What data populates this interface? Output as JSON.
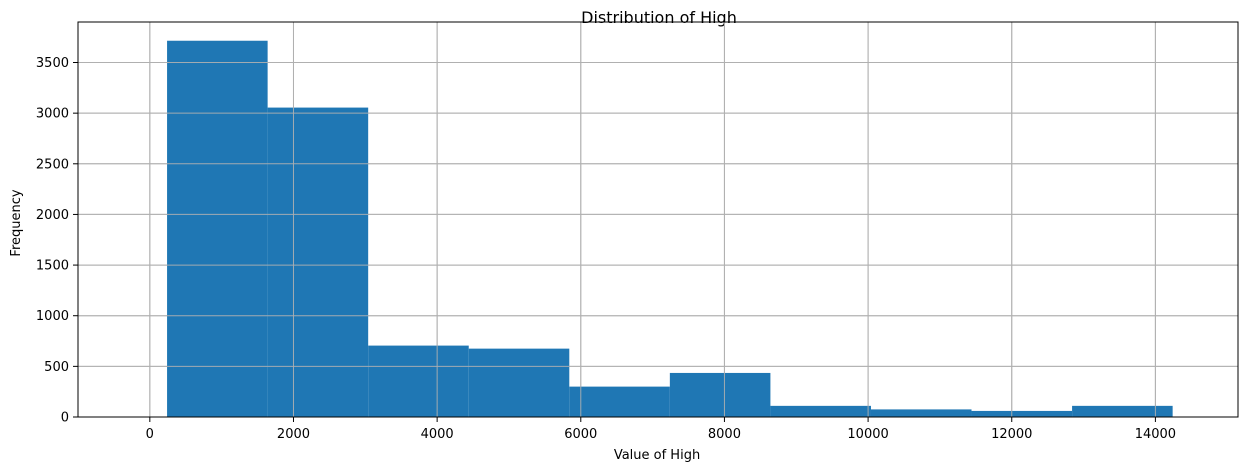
{
  "chart_data": {
    "type": "bar",
    "title": "Distribution of High",
    "xlabel": "Value of High",
    "ylabel": "Frequency",
    "xlim": [
      -1000,
      15150
    ],
    "ylim": [
      0,
      3900
    ],
    "xticks": [
      0,
      2000,
      4000,
      6000,
      8000,
      10000,
      12000,
      14000
    ],
    "yticks": [
      0,
      500,
      1000,
      1500,
      2000,
      2500,
      3000,
      3500
    ],
    "grid": true,
    "bar_color": "#1f77b4",
    "bins": [
      {
        "start": 240,
        "end": 1640,
        "count": 3715
      },
      {
        "start": 1640,
        "end": 3040,
        "count": 3055
      },
      {
        "start": 3040,
        "end": 4440,
        "count": 705
      },
      {
        "start": 4440,
        "end": 5840,
        "count": 675
      },
      {
        "start": 5840,
        "end": 7240,
        "count": 300
      },
      {
        "start": 7240,
        "end": 8640,
        "count": 435
      },
      {
        "start": 8640,
        "end": 10040,
        "count": 110
      },
      {
        "start": 10040,
        "end": 11440,
        "count": 75
      },
      {
        "start": 11440,
        "end": 12840,
        "count": 60
      },
      {
        "start": 12840,
        "end": 14240,
        "count": 110
      }
    ]
  }
}
